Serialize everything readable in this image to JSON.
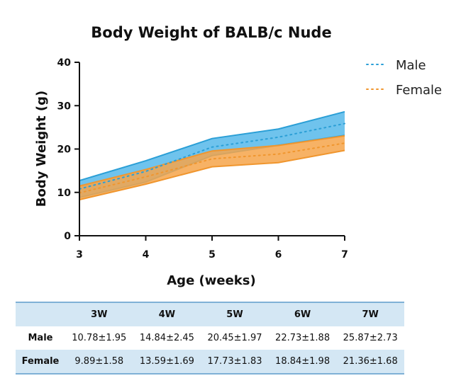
{
  "chart_data": {
    "type": "area",
    "title": "Body Weight of BALB/c Nude",
    "xlabel": "Age (weeks)",
    "ylabel": "Body Weight (g)",
    "x": [
      3,
      4,
      5,
      6,
      7
    ],
    "x_ticks": [
      "3",
      "4",
      "5",
      "6",
      "7"
    ],
    "ylim": [
      0,
      40
    ],
    "y_ticks": [
      "0",
      "10",
      "20",
      "30",
      "40"
    ],
    "legend_position": "top-right",
    "series": [
      {
        "name": "Male",
        "color": "#2b9fd6",
        "fill": "#56b8ea",
        "mean": [
          10.78,
          14.84,
          20.45,
          22.73,
          25.87
        ],
        "sd": [
          1.95,
          2.45,
          1.97,
          1.88,
          2.73
        ]
      },
      {
        "name": "Female",
        "color": "#f0962e",
        "fill": "#f6a54a",
        "mean": [
          9.89,
          13.59,
          17.73,
          18.84,
          21.36
        ],
        "sd": [
          1.58,
          1.69,
          1.83,
          1.98,
          1.68
        ]
      }
    ]
  },
  "table": {
    "headers": [
      "",
      "3W",
      "4W",
      "5W",
      "6W",
      "7W"
    ],
    "rows": [
      {
        "label": "Male",
        "values": [
          "10.78±1.95",
          "14.84±2.45",
          "20.45±1.97",
          "22.73±1.88",
          "25.87±2.73"
        ]
      },
      {
        "label": "Female",
        "values": [
          "9.89±1.58",
          "13.59±1.69",
          "17.73±1.83",
          "18.84±1.98",
          "21.36±1.68"
        ]
      }
    ]
  }
}
